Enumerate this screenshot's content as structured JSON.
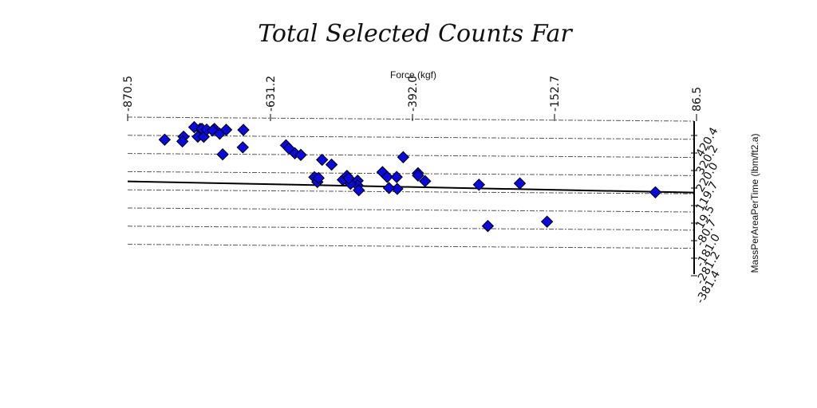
{
  "chart_data": {
    "type": "scatter",
    "title": "Total Selected Counts Far",
    "xlabel": "Force (kgf)",
    "ylabel": "MassPerAreaPerTime (lbm/ft2.a)",
    "xlim": [
      -870.5,
      86.5
    ],
    "ylim": [
      -381.4,
      420.4
    ],
    "x_ticks": [
      "-870.5",
      "-631.2",
      "-392.0",
      "-152.7",
      "86.5"
    ],
    "y_ticks": [
      "420.4",
      "320.2",
      "220.0",
      "119.7",
      "19.5",
      "-80.7",
      "-181.0",
      "-281.2",
      "-381.4"
    ],
    "grid": true,
    "marker": "diamond",
    "point_color": "#0a0adf",
    "series": [
      {
        "points": [
          [
            -808,
            280
          ],
          [
            -776,
            300
          ],
          [
            -748,
            350
          ],
          [
            -758,
            360
          ],
          [
            -745,
            350
          ],
          [
            -752,
            300
          ],
          [
            -742,
            300
          ],
          [
            -737,
            345
          ],
          [
            -724,
            350
          ],
          [
            -727,
            340
          ],
          [
            -778,
            270
          ],
          [
            -715,
            320
          ],
          [
            -704,
            345
          ],
          [
            -675,
            345
          ],
          [
            -710,
            190
          ],
          [
            -676,
            235
          ],
          [
            -603,
            250
          ],
          [
            -588,
            200
          ],
          [
            -598,
            230
          ],
          [
            -578,
            190
          ],
          [
            -542,
            160
          ],
          [
            -526,
            130
          ],
          [
            -555,
            50
          ],
          [
            -550,
            20
          ],
          [
            -548,
            45
          ],
          [
            -507,
            35
          ],
          [
            -482,
            30
          ],
          [
            -482,
            0
          ],
          [
            -480,
            -30
          ],
          [
            -494,
            10
          ],
          [
            -500,
            60
          ],
          [
            -497,
            45
          ],
          [
            -440,
            85
          ],
          [
            -415,
            -20
          ],
          [
            -429,
            -15
          ],
          [
            -432,
            55
          ],
          [
            -416,
            55
          ],
          [
            -380,
            80
          ],
          [
            -380,
            65
          ],
          [
            -405,
            180
          ],
          [
            -368,
            30
          ],
          [
            -277,
            10
          ],
          [
            -208,
            20
          ],
          [
            -262,
            -250
          ],
          [
            -162,
            -220
          ],
          [
            21,
            -30
          ]
        ]
      }
    ]
  }
}
